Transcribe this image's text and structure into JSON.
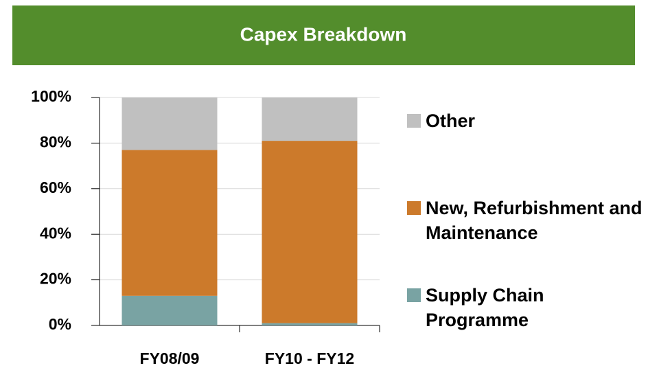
{
  "chart_data": {
    "type": "stacked_bar",
    "title": "Capex Breakdown",
    "categories": [
      "FY08/09",
      "FY10 - FY12"
    ],
    "series": [
      {
        "name": "Supply Chain Programme",
        "color": "#79a3a3",
        "values": [
          13,
          1
        ]
      },
      {
        "name": "New, Refurbishment and Maintenance",
        "color": "#cc7a2b",
        "values": [
          64,
          80
        ]
      },
      {
        "name": "Other",
        "color": "#c0c0c0",
        "values": [
          23,
          19
        ]
      }
    ],
    "ylim": [
      0,
      100
    ],
    "yticks": [
      {
        "value": 0,
        "label": "0%"
      },
      {
        "value": 20,
        "label": "20%"
      },
      {
        "value": 40,
        "label": "40%"
      },
      {
        "value": 60,
        "label": "60%"
      },
      {
        "value": 80,
        "label": "80%"
      },
      {
        "value": 100,
        "label": "100%"
      }
    ],
    "grid": true,
    "legend": "right"
  }
}
